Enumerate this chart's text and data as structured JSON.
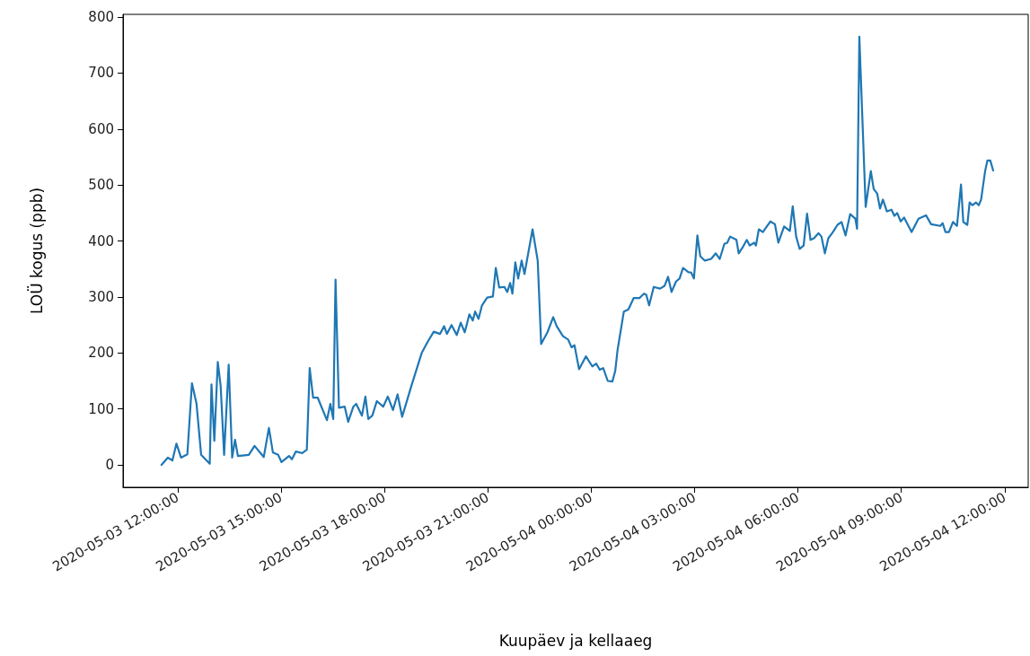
{
  "chart_data": {
    "type": "line",
    "xlabel": "Kuupäev ja kellaaeg",
    "ylabel": "LOÜ kogus (ppb)",
    "x": [
      "2020-05-03T11:32",
      "2020-05-03T11:43",
      "2020-05-03T11:51",
      "2020-05-03T11:58",
      "2020-05-03T12:06",
      "2020-05-03T12:17",
      "2020-05-03T12:25",
      "2020-05-03T12:33",
      "2020-05-03T12:41",
      "2020-05-03T12:56",
      "2020-05-03T12:59",
      "2020-05-03T13:04",
      "2020-05-03T13:10",
      "2020-05-03T13:15",
      "2020-05-03T13:21",
      "2020-05-03T13:29",
      "2020-05-03T13:35",
      "2020-05-03T13:40",
      "2020-05-03T13:45",
      "2020-05-03T14:04",
      "2020-05-03T14:14",
      "2020-05-03T14:30",
      "2020-05-03T14:39",
      "2020-05-03T14:46",
      "2020-05-03T14:55",
      "2020-05-03T15:01",
      "2020-05-03T15:14",
      "2020-05-03T15:19",
      "2020-05-03T15:26",
      "2020-05-03T15:37",
      "2020-05-03T15:45",
      "2020-05-03T15:50",
      "2020-05-03T15:56",
      "2020-05-03T16:04",
      "2020-05-03T16:20",
      "2020-05-03T16:26",
      "2020-05-03T16:31",
      "2020-05-03T16:35",
      "2020-05-03T16:41",
      "2020-05-03T16:51",
      "2020-05-03T16:57",
      "2020-05-03T17:06",
      "2020-05-03T17:11",
      "2020-05-03T17:21",
      "2020-05-03T17:27",
      "2020-05-03T17:32",
      "2020-05-03T17:39",
      "2020-05-03T17:47",
      "2020-05-03T17:58",
      "2020-05-03T18:06",
      "2020-05-03T18:15",
      "2020-05-03T18:23",
      "2020-05-03T18:31",
      "2020-05-03T18:47",
      "2020-05-03T19:05",
      "2020-05-03T19:16",
      "2020-05-03T19:26",
      "2020-05-03T19:37",
      "2020-05-03T19:44",
      "2020-05-03T19:49",
      "2020-05-03T19:57",
      "2020-05-03T20:06",
      "2020-05-03T20:13",
      "2020-05-03T20:20",
      "2020-05-03T20:28",
      "2020-05-03T20:34",
      "2020-05-03T20:38",
      "2020-05-03T20:44",
      "2020-05-03T20:50",
      "2020-05-03T20:59",
      "2020-05-03T21:09",
      "2020-05-03T21:14",
      "2020-05-03T21:20",
      "2020-05-03T21:29",
      "2020-05-03T21:34",
      "2020-05-03T21:39",
      "2020-05-03T21:43",
      "2020-05-03T21:48",
      "2020-05-03T21:53",
      "2020-05-03T21:59",
      "2020-05-03T22:04",
      "2020-05-03T22:18",
      "2020-05-03T22:27",
      "2020-05-03T22:33",
      "2020-05-03T22:44",
      "2020-05-03T22:54",
      "2020-05-03T23:00",
      "2020-05-03T23:11",
      "2020-05-03T23:20",
      "2020-05-03T23:26",
      "2020-05-03T23:31",
      "2020-05-03T23:39",
      "2020-05-03T23:51",
      "2020-05-04T00:02",
      "2020-05-04T00:09",
      "2020-05-04T00:15",
      "2020-05-04T00:21",
      "2020-05-04T00:29",
      "2020-05-04T00:37",
      "2020-05-04T00:42",
      "2020-05-04T00:46",
      "2020-05-04T00:57",
      "2020-05-04T01:05",
      "2020-05-04T01:14",
      "2020-05-04T01:24",
      "2020-05-04T01:32",
      "2020-05-04T01:36",
      "2020-05-04T01:41",
      "2020-05-04T01:49",
      "2020-05-04T02:00",
      "2020-05-04T02:08",
      "2020-05-04T02:14",
      "2020-05-04T02:20",
      "2020-05-04T02:28",
      "2020-05-04T02:34",
      "2020-05-04T02:40",
      "2020-05-04T02:50",
      "2020-05-04T02:54",
      "2020-05-04T02:59",
      "2020-05-04T03:05",
      "2020-05-04T03:10",
      "2020-05-04T03:18",
      "2020-05-04T03:29",
      "2020-05-04T03:37",
      "2020-05-04T03:44",
      "2020-05-04T03:52",
      "2020-05-04T03:57",
      "2020-05-04T04:02",
      "2020-05-04T04:13",
      "2020-05-04T04:17",
      "2020-05-04T04:24",
      "2020-05-04T04:31",
      "2020-05-04T04:36",
      "2020-05-04T04:44",
      "2020-05-04T04:47",
      "2020-05-04T04:52",
      "2020-05-04T04:59",
      "2020-05-04T05:12",
      "2020-05-04T05:20",
      "2020-05-04T05:26",
      "2020-05-04T05:36",
      "2020-05-04T05:46",
      "2020-05-04T05:51",
      "2020-05-04T05:57",
      "2020-05-04T06:03",
      "2020-05-04T06:10",
      "2020-05-04T06:16",
      "2020-05-04T06:22",
      "2020-05-04T06:28",
      "2020-05-04T06:36",
      "2020-05-04T06:41",
      "2020-05-04T06:47",
      "2020-05-04T06:53",
      "2020-05-04T07:01",
      "2020-05-04T07:09",
      "2020-05-04T07:16",
      "2020-05-04T07:23",
      "2020-05-04T07:31",
      "2020-05-04T07:40",
      "2020-05-04T07:43",
      "2020-05-04T07:47",
      "2020-05-04T07:58",
      "2020-05-04T08:07",
      "2020-05-04T08:12",
      "2020-05-04T08:18",
      "2020-05-04T08:23",
      "2020-05-04T08:28",
      "2020-05-04T08:35",
      "2020-05-04T08:43",
      "2020-05-04T08:48",
      "2020-05-04T08:53",
      "2020-05-04T08:59",
      "2020-05-04T09:05",
      "2020-05-04T09:18",
      "2020-05-04T09:30",
      "2020-05-04T09:43",
      "2020-05-04T09:52",
      "2020-05-04T10:08",
      "2020-05-04T10:12",
      "2020-05-04T10:17",
      "2020-05-04T10:23",
      "2020-05-04T10:30",
      "2020-05-04T10:37",
      "2020-05-04T10:44",
      "2020-05-04T10:48",
      "2020-05-04T10:55",
      "2020-05-04T10:59",
      "2020-05-04T11:04",
      "2020-05-04T11:10",
      "2020-05-04T11:15",
      "2020-05-04T11:19",
      "2020-05-04T11:26",
      "2020-05-04T11:30",
      "2020-05-04T11:35",
      "2020-05-04T11:40"
    ],
    "series": [
      {
        "color": "#1f77b4",
        "values": [
          0,
          13,
          8,
          38,
          13,
          19,
          146,
          109,
          18,
          2,
          144,
          43,
          184,
          141,
          18,
          179,
          13,
          45,
          16,
          18,
          34,
          14,
          66,
          22,
          18,
          5,
          16,
          10,
          24,
          21,
          27,
          173,
          120,
          120,
          80,
          109,
          82,
          331,
          102,
          104,
          77,
          104,
          109,
          88,
          122,
          82,
          88,
          114,
          104,
          122,
          98,
          126,
          86,
          141,
          200,
          221,
          238,
          234,
          248,
          234,
          250,
          232,
          254,
          237,
          269,
          258,
          274,
          261,
          285,
          299,
          301,
          352,
          317,
          318,
          309,
          325,
          306,
          362,
          333,
          365,
          341,
          421,
          365,
          216,
          237,
          264,
          248,
          230,
          224,
          210,
          214,
          171,
          194,
          176,
          181,
          170,
          173,
          150,
          149,
          168,
          205,
          274,
          278,
          298,
          298,
          306,
          304,
          285,
          318,
          315,
          320,
          336,
          309,
          328,
          333,
          352,
          344,
          344,
          333,
          410,
          373,
          365,
          368,
          378,
          368,
          395,
          397,
          408,
          402,
          378,
          389,
          402,
          392,
          397,
          392,
          421,
          416,
          435,
          430,
          397,
          426,
          418,
          462,
          408,
          386,
          392,
          449,
          402,
          405,
          414,
          408,
          378,
          405,
          416,
          429,
          434,
          410,
          448,
          440,
          422,
          765,
          461,
          525,
          493,
          485,
          458,
          474,
          453,
          456,
          445,
          450,
          435,
          442,
          416,
          440,
          446,
          430,
          427,
          432,
          416,
          416,
          434,
          427,
          501,
          434,
          429,
          469,
          464,
          469,
          464,
          474,
          525,
          544,
          544,
          526
        ]
      }
    ],
    "xlim": [
      "2020-05-03T10:25",
      "2020-05-04T12:41"
    ],
    "xticks": [
      {
        "value": "2020-05-03T12:00",
        "label": "2020-05-03 12:00:00"
      },
      {
        "value": "2020-05-03T15:00",
        "label": "2020-05-03 15:00:00"
      },
      {
        "value": "2020-05-03T18:00",
        "label": "2020-05-03 18:00:00"
      },
      {
        "value": "2020-05-03T21:00",
        "label": "2020-05-03 21:00:00"
      },
      {
        "value": "2020-05-04T00:00",
        "label": "2020-05-04 00:00:00"
      },
      {
        "value": "2020-05-04T03:00",
        "label": "2020-05-04 03:00:00"
      },
      {
        "value": "2020-05-04T06:00",
        "label": "2020-05-04 06:00:00"
      },
      {
        "value": "2020-05-04T09:00",
        "label": "2020-05-04 09:00:00"
      },
      {
        "value": "2020-05-04T12:00",
        "label": "2020-05-04 12:00:00"
      }
    ],
    "ylim": [
      -40,
      805
    ],
    "yticks": [
      0,
      100,
      200,
      300,
      400,
      500,
      600,
      700,
      800
    ],
    "grid": false,
    "marker": "none",
    "line_style": "solid"
  }
}
